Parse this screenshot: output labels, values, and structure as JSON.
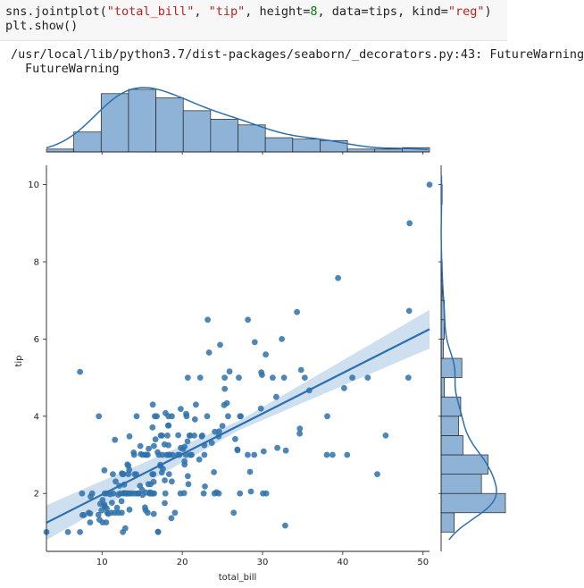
{
  "code": {
    "line1_prefix": "sns.jointplot(",
    "line1_arg1": "\"total_bill\"",
    "line1_sep1": ", ",
    "line1_arg2": "\"tip\"",
    "line1_sep2": ", height=",
    "line1_height": "8",
    "line1_mid": ", data=tips, kind=",
    "line1_kind": "\"reg\"",
    "line1_end": ")",
    "line2": "plt.show()"
  },
  "warning": {
    "line1": "/usr/local/lib/python3.7/dist-packages/seaborn/_decorators.py:43: FutureWarning",
    "line2": "FutureWarning"
  },
  "colors": {
    "points": "#2f72aa",
    "hist": "#8fb3d6",
    "line": "#2a6fb0",
    "band": "#c9dcee"
  },
  "chart_data": {
    "type": "scatter",
    "xlabel": "total_bill",
    "ylabel": "tip",
    "xlim": [
      3.07,
      50.81
    ],
    "ylim": [
      0.5,
      10.5
    ],
    "xticks": [
      10,
      20,
      30,
      40,
      50
    ],
    "yticks": [
      2,
      4,
      6,
      8,
      10
    ],
    "regression": {
      "intercept": 0.92,
      "slope": 0.105,
      "ci_band": [
        [
          3.07,
          0.45
        ],
        [
          27,
          0.12
        ],
        [
          50.81,
          0.5
        ]
      ]
    },
    "points": [
      [
        3.07,
        1.0
      ],
      [
        5.75,
        1.0
      ],
      [
        7.25,
        1.0
      ],
      [
        7.25,
        5.15
      ],
      [
        7.51,
        2.0
      ],
      [
        7.56,
        1.44
      ],
      [
        7.74,
        1.44
      ],
      [
        8.35,
        1.5
      ],
      [
        8.51,
        1.25
      ],
      [
        8.52,
        1.48
      ],
      [
        8.58,
        1.92
      ],
      [
        8.77,
        2.0
      ],
      [
        9.55,
        1.45
      ],
      [
        9.6,
        4.0
      ],
      [
        9.68,
        1.32
      ],
      [
        9.78,
        1.73
      ],
      [
        9.94,
        1.56
      ],
      [
        10.07,
        1.83
      ],
      [
        10.07,
        1.25
      ],
      [
        10.27,
        1.71
      ],
      [
        10.29,
        2.6
      ],
      [
        10.33,
        1.67
      ],
      [
        10.34,
        1.66
      ],
      [
        10.34,
        2.0
      ],
      [
        10.51,
        1.25
      ],
      [
        10.59,
        1.61
      ],
      [
        10.63,
        2.0
      ],
      [
        10.65,
        1.5
      ],
      [
        10.77,
        1.47
      ],
      [
        11.02,
        1.98
      ],
      [
        11.17,
        1.5
      ],
      [
        11.24,
        1.76
      ],
      [
        11.35,
        2.5
      ],
      [
        11.38,
        2.0
      ],
      [
        11.59,
        1.5
      ],
      [
        11.61,
        3.39
      ],
      [
        11.69,
        2.31
      ],
      [
        11.87,
        1.63
      ],
      [
        12.02,
        1.97
      ],
      [
        12.03,
        1.5
      ],
      [
        12.16,
        2.2
      ],
      [
        12.26,
        2.0
      ],
      [
        12.43,
        1.8
      ],
      [
        12.46,
        1.5
      ],
      [
        12.48,
        2.52
      ],
      [
        12.54,
        2.5
      ],
      [
        12.6,
        1.0
      ],
      [
        12.66,
        2.5
      ],
      [
        12.69,
        2.0
      ],
      [
        12.74,
        2.01
      ],
      [
        12.76,
        2.23
      ],
      [
        12.9,
        1.1
      ],
      [
        13.0,
        2.0
      ],
      [
        13.03,
        2.0
      ],
      [
        13.13,
        2.0
      ],
      [
        13.16,
        2.75
      ],
      [
        13.27,
        2.5
      ],
      [
        13.28,
        2.72
      ],
      [
        13.37,
        2.0
      ],
      [
        13.39,
        2.61
      ],
      [
        13.42,
        3.48
      ],
      [
        13.42,
        1.58
      ],
      [
        13.51,
        2.0
      ],
      [
        13.81,
        2.0
      ],
      [
        13.94,
        3.06
      ],
      [
        14.0,
        3.0
      ],
      [
        14.07,
        2.5
      ],
      [
        14.15,
        2.0
      ],
      [
        14.26,
        2.5
      ],
      [
        14.31,
        4.0
      ],
      [
        14.48,
        2.0
      ],
      [
        14.52,
        2.0
      ],
      [
        14.73,
        2.2
      ],
      [
        14.78,
        3.23
      ],
      [
        14.83,
        3.02
      ],
      [
        15.01,
        2.09
      ],
      [
        15.04,
        1.96
      ],
      [
        15.06,
        3.0
      ],
      [
        15.36,
        1.64
      ],
      [
        15.38,
        3.0
      ],
      [
        15.42,
        1.57
      ],
      [
        15.48,
        2.02
      ],
      [
        15.53,
        3.0
      ],
      [
        15.69,
        1.5
      ],
      [
        15.69,
        3.0
      ],
      [
        15.77,
        2.24
      ],
      [
        15.81,
        3.16
      ],
      [
        15.95,
        2.0
      ],
      [
        15.98,
        2.03
      ],
      [
        16.0,
        2.0
      ],
      [
        16.04,
        2.24
      ],
      [
        16.21,
        2.0
      ],
      [
        16.27,
        2.5
      ],
      [
        16.29,
        3.71
      ],
      [
        16.31,
        2.0
      ],
      [
        16.32,
        4.3
      ],
      [
        16.4,
        2.5
      ],
      [
        16.43,
        2.3
      ],
      [
        16.45,
        1.47
      ],
      [
        16.47,
        3.23
      ],
      [
        16.49,
        2.0
      ],
      [
        16.58,
        4.0
      ],
      [
        16.66,
        3.4
      ],
      [
        16.82,
        4.0
      ],
      [
        16.93,
        3.07
      ],
      [
        16.97,
        1.01
      ],
      [
        16.99,
        1.0
      ],
      [
        17.07,
        3.0
      ],
      [
        17.26,
        2.74
      ],
      [
        17.29,
        2.71
      ],
      [
        17.31,
        3.5
      ],
      [
        17.46,
        2.54
      ],
      [
        17.47,
        3.5
      ],
      [
        17.51,
        3.0
      ],
      [
        17.59,
        2.64
      ],
      [
        17.78,
        3.27
      ],
      [
        17.81,
        2.34
      ],
      [
        17.82,
        1.75
      ],
      [
        17.89,
        2.0
      ],
      [
        17.92,
        4.08
      ],
      [
        18.04,
        3.0
      ],
      [
        18.15,
        3.5
      ],
      [
        18.24,
        3.76
      ],
      [
        18.26,
        3.25
      ],
      [
        18.28,
        4.0
      ],
      [
        18.29,
        3.0
      ],
      [
        18.29,
        3.76
      ],
      [
        18.35,
        2.5
      ],
      [
        18.43,
        3.0
      ],
      [
        18.64,
        1.36
      ],
      [
        18.69,
        2.31
      ],
      [
        18.71,
        4.0
      ],
      [
        18.78,
        3.0
      ],
      [
        19.08,
        1.5
      ],
      [
        19.44,
        3.0
      ],
      [
        19.49,
        3.51
      ],
      [
        19.65,
        3.0
      ],
      [
        19.77,
        2.0
      ],
      [
        19.81,
        4.19
      ],
      [
        19.82,
        3.18
      ],
      [
        20.08,
        3.15
      ],
      [
        20.23,
        2.01
      ],
      [
        20.27,
        2.83
      ],
      [
        20.29,
        2.75
      ],
      [
        20.29,
        3.21
      ],
      [
        20.45,
        3.0
      ],
      [
        20.49,
        4.06
      ],
      [
        20.53,
        4.0
      ],
      [
        20.65,
        3.35
      ],
      [
        20.69,
        2.45
      ],
      [
        20.69,
        5.0
      ],
      [
        20.76,
        2.24
      ],
      [
        20.9,
        3.5
      ],
      [
        21.01,
        3.5
      ],
      [
        21.01,
        3.0
      ],
      [
        21.16,
        3.0
      ],
      [
        21.5,
        3.5
      ],
      [
        21.58,
        3.92
      ],
      [
        21.7,
        4.3
      ],
      [
        22.12,
        2.88
      ],
      [
        22.23,
        5.0
      ],
      [
        22.42,
        3.48
      ],
      [
        22.49,
        3.5
      ],
      [
        22.67,
        2.0
      ],
      [
        22.75,
        3.25
      ],
      [
        22.76,
        3.0
      ],
      [
        22.82,
        2.18
      ],
      [
        23.1,
        4.0
      ],
      [
        23.17,
        6.5
      ],
      [
        23.33,
        5.65
      ],
      [
        23.68,
        3.31
      ],
      [
        23.95,
        2.55
      ],
      [
        24.01,
        2.0
      ],
      [
        24.06,
        3.6
      ],
      [
        24.27,
        2.03
      ],
      [
        24.52,
        3.48
      ],
      [
        24.55,
        2.0
      ],
      [
        24.59,
        3.61
      ],
      [
        24.71,
        5.85
      ],
      [
        25.0,
        3.75
      ],
      [
        25.21,
        4.29
      ],
      [
        25.28,
        5.0
      ],
      [
        25.29,
        4.71
      ],
      [
        25.56,
        4.34
      ],
      [
        25.71,
        4.0
      ],
      [
        25.89,
        5.16
      ],
      [
        26.41,
        1.5
      ],
      [
        26.59,
        3.41
      ],
      [
        26.86,
        3.14
      ],
      [
        26.88,
        3.12
      ],
      [
        27.05,
        5.0
      ],
      [
        27.18,
        2.0
      ],
      [
        27.2,
        4.0
      ],
      [
        27.28,
        4.0
      ],
      [
        28.15,
        3.0
      ],
      [
        28.17,
        6.5
      ],
      [
        28.44,
        2.56
      ],
      [
        28.55,
        2.05
      ],
      [
        28.97,
        3.0
      ],
      [
        29.03,
        5.92
      ],
      [
        29.8,
        4.2
      ],
      [
        29.85,
        5.14
      ],
      [
        29.93,
        5.07
      ],
      [
        30.06,
        2.0
      ],
      [
        30.14,
        3.09
      ],
      [
        30.4,
        5.6
      ],
      [
        30.46,
        2.0
      ],
      [
        31.27,
        5.0
      ],
      [
        31.71,
        4.5
      ],
      [
        31.85,
        3.18
      ],
      [
        32.4,
        6.0
      ],
      [
        32.68,
        5.0
      ],
      [
        32.83,
        1.17
      ],
      [
        32.9,
        3.11
      ],
      [
        34.3,
        6.7
      ],
      [
        34.63,
        3.55
      ],
      [
        34.65,
        3.68
      ],
      [
        34.81,
        5.2
      ],
      [
        35.26,
        5.0
      ],
      [
        35.83,
        4.67
      ],
      [
        38.01,
        3.0
      ],
      [
        38.07,
        4.0
      ],
      [
        38.73,
        3.0
      ],
      [
        39.42,
        7.58
      ],
      [
        40.17,
        4.73
      ],
      [
        40.55,
        3.0
      ],
      [
        41.19,
        5.0
      ],
      [
        43.11,
        5.0
      ],
      [
        44.3,
        2.5
      ],
      [
        45.35,
        3.5
      ],
      [
        48.17,
        5.0
      ],
      [
        48.27,
        6.73
      ],
      [
        48.33,
        9.0
      ],
      [
        50.81,
        10.0
      ]
    ],
    "marginal_x": {
      "bins": [
        3.07,
        6.48,
        9.89,
        13.3,
        16.71,
        20.12,
        23.53,
        26.94,
        30.35,
        33.76,
        37.17,
        40.58,
        43.99,
        47.4,
        50.81
      ],
      "counts": [
        2,
        14,
        41,
        44,
        38,
        29,
        23,
        19,
        10,
        9,
        8,
        2,
        2,
        3
      ]
    },
    "marginal_y": {
      "bins": [
        1.0,
        1.5,
        2.0,
        2.5,
        3.0,
        3.5,
        4.0,
        4.5,
        5.0,
        5.5,
        6.0,
        6.5,
        7.0,
        7.5,
        8.0,
        8.5,
        9.0,
        9.5,
        10.0
      ],
      "counts": [
        12,
        59,
        37,
        43,
        20,
        16,
        18,
        3,
        19,
        2,
        3,
        3,
        1,
        1,
        0,
        0,
        0,
        1
      ]
    }
  }
}
